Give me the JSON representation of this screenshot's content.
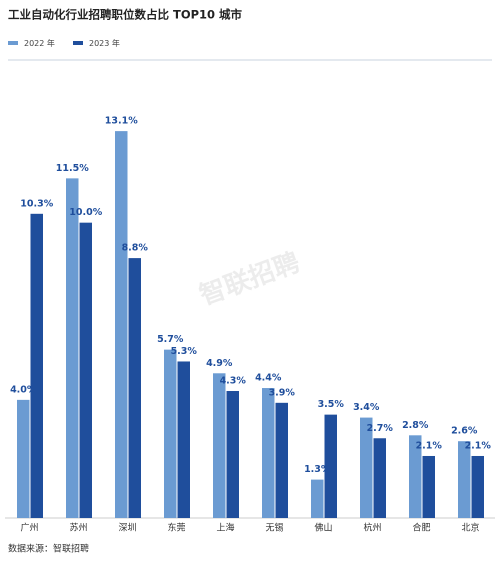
{
  "chart_data": {
    "type": "bar",
    "title": "工业自动化行业招聘职位数占比 TOP10 城市",
    "categories": [
      "广州",
      "苏州",
      "深圳",
      "东莞",
      "上海",
      "无锡",
      "佛山",
      "杭州",
      "合肥",
      "北京"
    ],
    "series": [
      {
        "name": "2022 年",
        "color": "#6b9bd2",
        "values": [
          4.0,
          11.5,
          13.1,
          5.7,
          4.9,
          4.4,
          1.3,
          3.4,
          2.8,
          2.6
        ],
        "value_labels": [
          "4.0%",
          "11.5%",
          "13.1%",
          "5.7%",
          "4.9%",
          "4.4%",
          "1.3%",
          "3.4%",
          "2.8%",
          "2.6%"
        ]
      },
      {
        "name": "2023 年",
        "color": "#1f4e9c",
        "values": [
          10.3,
          10.0,
          8.8,
          5.3,
          4.3,
          3.9,
          3.5,
          2.7,
          2.1,
          2.1
        ],
        "value_labels": [
          "10.3%",
          "10.0%",
          "8.8%",
          "5.3%",
          "4.3%",
          "3.9%",
          "3.5%",
          "2.7%",
          "2.1%",
          "2.1%"
        ]
      }
    ],
    "ylim": [
      0,
      15
    ],
    "watermark": "智联招聘",
    "source": "数据来源：智联招聘"
  }
}
